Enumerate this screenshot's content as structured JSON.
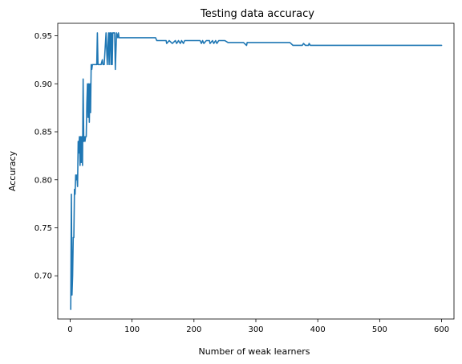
{
  "chart_data": {
    "type": "line",
    "title": "Testing data accuracy",
    "xlabel": "Number of weak learners",
    "ylabel": "Accuracy",
    "xlim": [
      -20,
      620
    ],
    "ylim": [
      0.655,
      0.963
    ],
    "xticks": [
      0,
      100,
      200,
      300,
      400,
      500,
      600
    ],
    "xtick_labels": [
      "0",
      "100",
      "200",
      "300",
      "400",
      "500",
      "600"
    ],
    "yticks": [
      0.7,
      0.75,
      0.8,
      0.85,
      0.9,
      0.95
    ],
    "ytick_labels": [
      "0.70",
      "0.75",
      "0.80",
      "0.85",
      "0.90",
      "0.95"
    ],
    "grid": false,
    "legend": "none",
    "series": [
      {
        "color": "#1f77b4",
        "x": [
          1,
          2,
          3,
          4,
          5,
          6,
          7,
          8,
          9,
          10,
          11,
          12,
          13,
          14,
          15,
          16,
          17,
          18,
          19,
          20,
          21,
          22,
          23,
          24,
          25,
          26,
          27,
          28,
          29,
          30,
          31,
          32,
          33,
          34,
          35,
          36,
          37,
          38,
          39,
          40,
          41,
          42,
          43,
          44,
          45,
          48,
          50,
          52,
          53,
          55,
          58,
          60,
          62,
          63,
          64,
          65,
          66,
          67,
          68,
          69,
          70,
          72,
          73,
          75,
          77,
          78,
          79,
          80,
          81,
          82,
          83,
          84,
          86,
          90,
          100,
          110,
          120,
          130,
          138,
          140,
          150,
          155,
          156,
          160,
          165,
          170,
          172,
          175,
          178,
          180,
          183,
          185,
          190,
          195,
          200,
          210,
          212,
          214,
          216,
          220,
          225,
          226,
          230,
          232,
          235,
          237,
          240,
          245,
          250,
          255,
          260,
          270,
          280,
          285,
          286,
          290,
          300,
          320,
          340,
          355,
          360,
          370,
          375,
          377,
          380,
          383,
          385,
          386,
          388,
          390,
          400,
          450,
          500,
          550,
          600
        ],
        "y": [
          0.665,
          0.785,
          0.68,
          0.7,
          0.74,
          0.74,
          0.79,
          0.785,
          0.805,
          0.8,
          0.805,
          0.793,
          0.84,
          0.828,
          0.845,
          0.815,
          0.845,
          0.818,
          0.845,
          0.815,
          0.905,
          0.84,
          0.845,
          0.84,
          0.845,
          0.845,
          0.88,
          0.9,
          0.865,
          0.9,
          0.86,
          0.9,
          0.87,
          0.92,
          0.915,
          0.92,
          0.92,
          0.92,
          0.92,
          0.92,
          0.92,
          0.92,
          0.92,
          0.953,
          0.92,
          0.92,
          0.92,
          0.925,
          0.92,
          0.92,
          0.953,
          0.92,
          0.953,
          0.92,
          0.953,
          0.953,
          0.92,
          0.953,
          0.92,
          0.953,
          0.953,
          0.953,
          0.915,
          0.953,
          0.948,
          0.953,
          0.948,
          0.948,
          0.948,
          0.948,
          0.948,
          0.948,
          0.948,
          0.948,
          0.948,
          0.948,
          0.948,
          0.948,
          0.948,
          0.945,
          0.945,
          0.945,
          0.942,
          0.945,
          0.942,
          0.945,
          0.942,
          0.945,
          0.942,
          0.945,
          0.942,
          0.945,
          0.945,
          0.945,
          0.945,
          0.945,
          0.942,
          0.945,
          0.942,
          0.945,
          0.945,
          0.942,
          0.945,
          0.942,
          0.945,
          0.942,
          0.945,
          0.945,
          0.945,
          0.943,
          0.943,
          0.943,
          0.943,
          0.94,
          0.943,
          0.943,
          0.943,
          0.943,
          0.943,
          0.943,
          0.94,
          0.94,
          0.94,
          0.942,
          0.94,
          0.94,
          0.94,
          0.942,
          0.94,
          0.94,
          0.94,
          0.94,
          0.94,
          0.94,
          0.94
        ]
      }
    ]
  }
}
